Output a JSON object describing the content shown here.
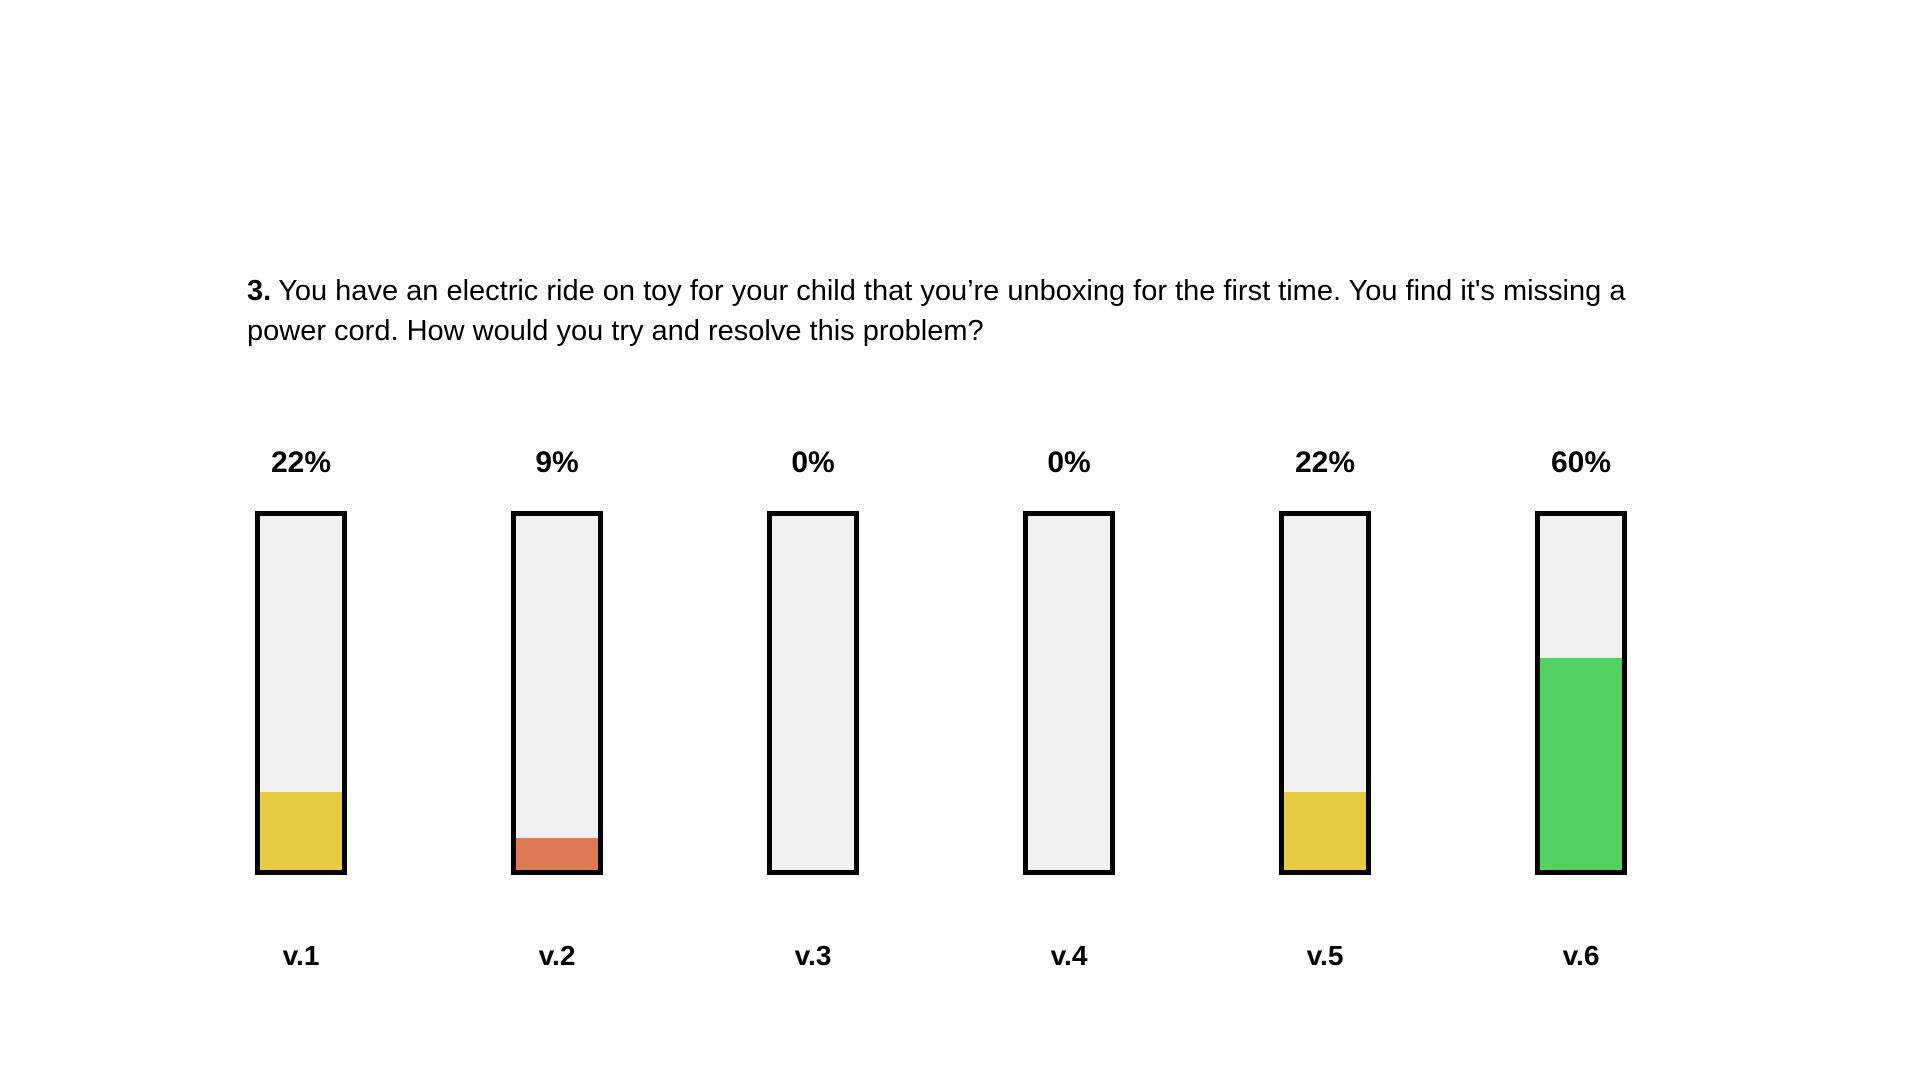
{
  "page": {
    "background": "#ffffff"
  },
  "question": {
    "number": "3.",
    "text": "You have an electric ride on toy for your child that you’re unboxing for the first time. You find it's missing a power cord. How would you try and resolve this problem?"
  },
  "chart_data": {
    "type": "bar",
    "title": "3. You have an electric ride on toy for your child that you’re unboxing for the first time. You find it's missing a power cord. How would you try and resolve this problem?",
    "categories": [
      "v.1",
      "v.2",
      "v.3",
      "v.4",
      "v.5",
      "v.6"
    ],
    "values": [
      22,
      9,
      0,
      0,
      22,
      60
    ],
    "value_labels": [
      "22%",
      "9%",
      "0%",
      "0%",
      "22%",
      "60%"
    ],
    "bar_colors": [
      "#e7cb41",
      "#dc7a55",
      null,
      null,
      "#e7cb41",
      "#55d163"
    ],
    "track_color": "#f0f0f0",
    "border_color": "#000000",
    "orientation": "vertical",
    "ylim": [
      0,
      100
    ],
    "grid": false,
    "legend": false
  }
}
